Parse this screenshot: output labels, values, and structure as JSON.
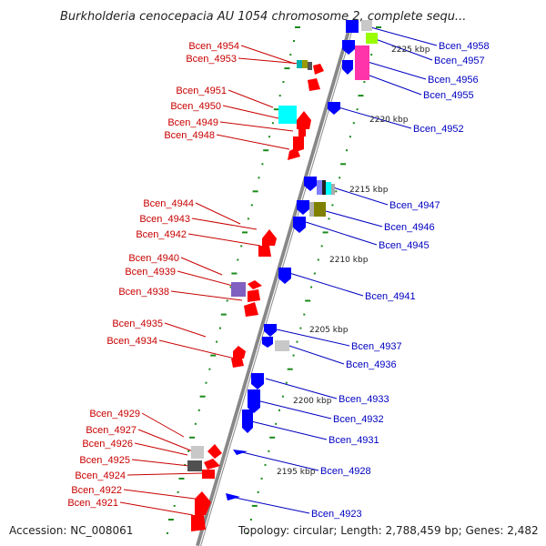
{
  "title": "Burkholderia cenocepacia AU 1054 chromosome 2, complete sequ...",
  "footer": {
    "accession": "Accession: NC_008061",
    "topology": "Topology: circular; Length: 2,788,459 bp; Genes: 2,482"
  },
  "scale_labels": [
    "2225 kbp",
    "2220 kbp",
    "2215 kbp",
    "2210 kbp",
    "2205 kbp",
    "2200 kbp",
    "2195 kbp"
  ],
  "left_genes": [
    "Bcen_4954",
    "Bcen_4953",
    "Bcen_4951",
    "Bcen_4950",
    "Bcen_4949",
    "Bcen_4948",
    "Bcen_4944",
    "Bcen_4943",
    "Bcen_4942",
    "Bcen_4940",
    "Bcen_4939",
    "Bcen_4938",
    "Bcen_4935",
    "Bcen_4934",
    "Bcen_4929",
    "Bcen_4927",
    "Bcen_4926",
    "Bcen_4925",
    "Bcen_4924",
    "Bcen_4922",
    "Bcen_4921"
  ],
  "right_genes": [
    "Bcen_4958",
    "Bcen_4957",
    "Bcen_4956",
    "Bcen_4955",
    "Bcen_4952",
    "Bcen_4947",
    "Bcen_4946",
    "Bcen_4945",
    "Bcen_4941",
    "Bcen_4937",
    "Bcen_4936",
    "Bcen_4933",
    "Bcen_4932",
    "Bcen_4931",
    "Bcen_4928",
    "Bcen_4923"
  ],
  "colors": {
    "left_strand": "#ff0000",
    "right_strand": "#0000ff",
    "backbone": "#888888",
    "ticks": "#008000",
    "left_label": "#c80000",
    "right_label": "#0000c0"
  }
}
